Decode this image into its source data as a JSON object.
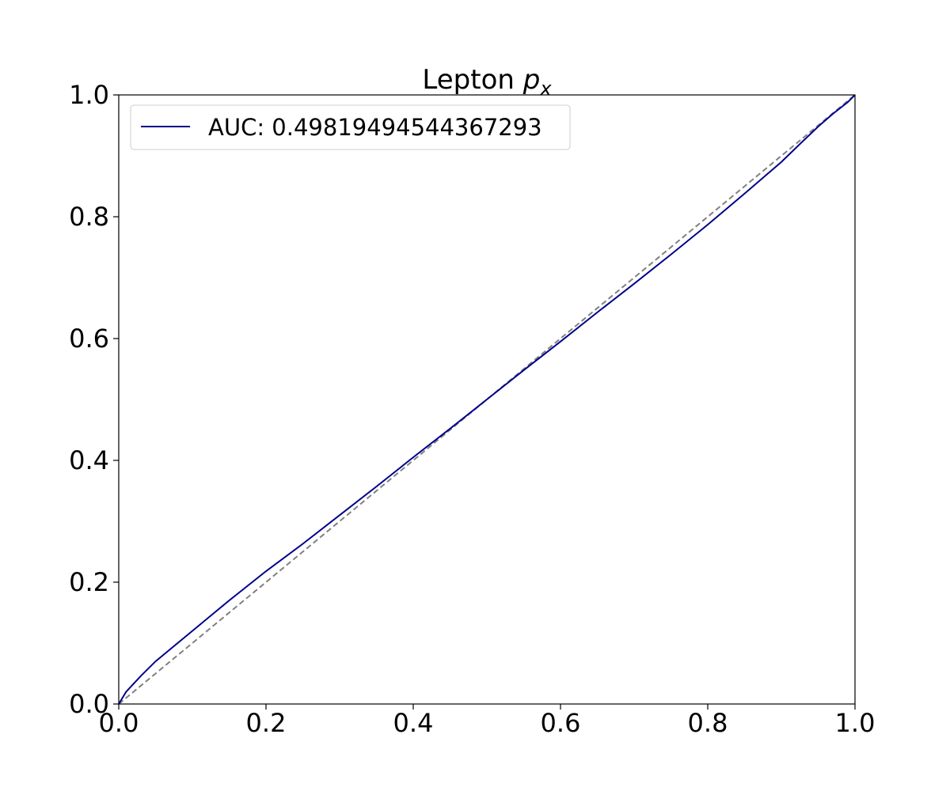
{
  "chart_data": {
    "type": "line",
    "title": "Lepton ",
    "title_math_base": "p",
    "title_math_sub": "x",
    "xlabel": "",
    "ylabel": "",
    "xlim": [
      0.0,
      1.0
    ],
    "ylim": [
      0.0,
      1.0
    ],
    "xticks": [
      "0.0",
      "0.2",
      "0.4",
      "0.6",
      "0.8",
      "1.0"
    ],
    "yticks": [
      "0.0",
      "0.2",
      "0.4",
      "0.6",
      "0.8",
      "1.0"
    ],
    "grid": false,
    "legend_position": "top-left",
    "series": [
      {
        "name": "AUC: 0.49819494544367293",
        "color": "#00008b",
        "style": "solid",
        "x": [
          0.0,
          0.01,
          0.03,
          0.05,
          0.08,
          0.1,
          0.15,
          0.2,
          0.25,
          0.3,
          0.35,
          0.4,
          0.45,
          0.5,
          0.55,
          0.6,
          0.65,
          0.7,
          0.75,
          0.8,
          0.85,
          0.9,
          0.93,
          0.95,
          0.97,
          0.99,
          1.0
        ],
        "y": [
          0.0,
          0.02,
          0.046,
          0.07,
          0.1,
          0.12,
          0.17,
          0.218,
          0.263,
          0.31,
          0.357,
          0.405,
          0.452,
          0.5,
          0.548,
          0.595,
          0.643,
          0.69,
          0.738,
          0.787,
          0.838,
          0.89,
          0.925,
          0.948,
          0.969,
          0.988,
          1.0
        ]
      },
      {
        "name": "",
        "color": "#808080",
        "style": "dashed",
        "x": [
          0.0,
          1.0
        ],
        "y": [
          0.0,
          1.0
        ]
      }
    ]
  }
}
